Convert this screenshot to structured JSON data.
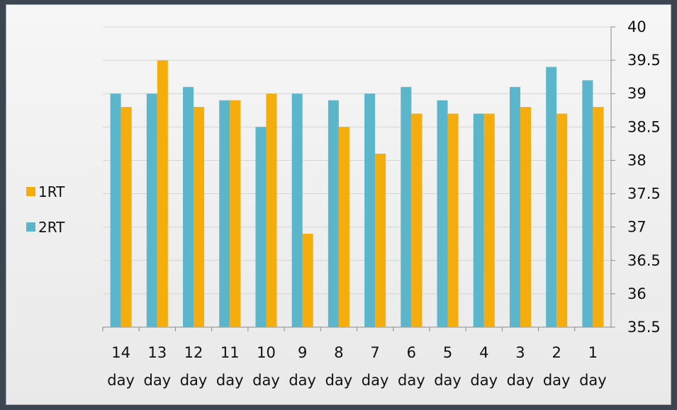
{
  "chart_data": {
    "type": "bar",
    "categories": [
      [
        "14",
        "day"
      ],
      [
        "13",
        "day"
      ],
      [
        "12",
        "day"
      ],
      [
        "11",
        "day"
      ],
      [
        "10",
        "day"
      ],
      [
        "9",
        "day"
      ],
      [
        "8",
        "day"
      ],
      [
        "7",
        "day"
      ],
      [
        "6",
        "day"
      ],
      [
        "5",
        "day"
      ],
      [
        "4",
        "day"
      ],
      [
        "3",
        "day"
      ],
      [
        "2",
        "day"
      ],
      [
        "1",
        "day"
      ]
    ],
    "series": [
      {
        "name": "2RT",
        "color": "#5bb6cc",
        "values": [
          39.0,
          39.0,
          39.1,
          38.9,
          38.5,
          39.0,
          38.9,
          39.0,
          39.1,
          38.9,
          38.7,
          39.1,
          39.4,
          39.2
        ]
      },
      {
        "name": "1RT",
        "color": "#f4ad0c",
        "values": [
          38.8,
          39.5,
          38.8,
          38.9,
          39.0,
          36.9,
          38.5,
          38.1,
          38.7,
          38.7,
          38.7,
          38.8,
          38.7,
          38.8
        ]
      }
    ],
    "ylim": [
      35.5,
      40
    ],
    "yticks": [
      "35.5",
      "36",
      "36.5",
      "37",
      "37.5",
      "38",
      "38.5",
      "39",
      "39.5",
      "40"
    ],
    "y_axis_position": "right",
    "grid": true,
    "legend": {
      "placement": "left",
      "entries": [
        {
          "name": "1RT",
          "color": "#f4ad0c"
        },
        {
          "name": "2RT",
          "color": "#5bb6cc"
        }
      ]
    },
    "title": "",
    "xlabel": "",
    "ylabel": ""
  }
}
